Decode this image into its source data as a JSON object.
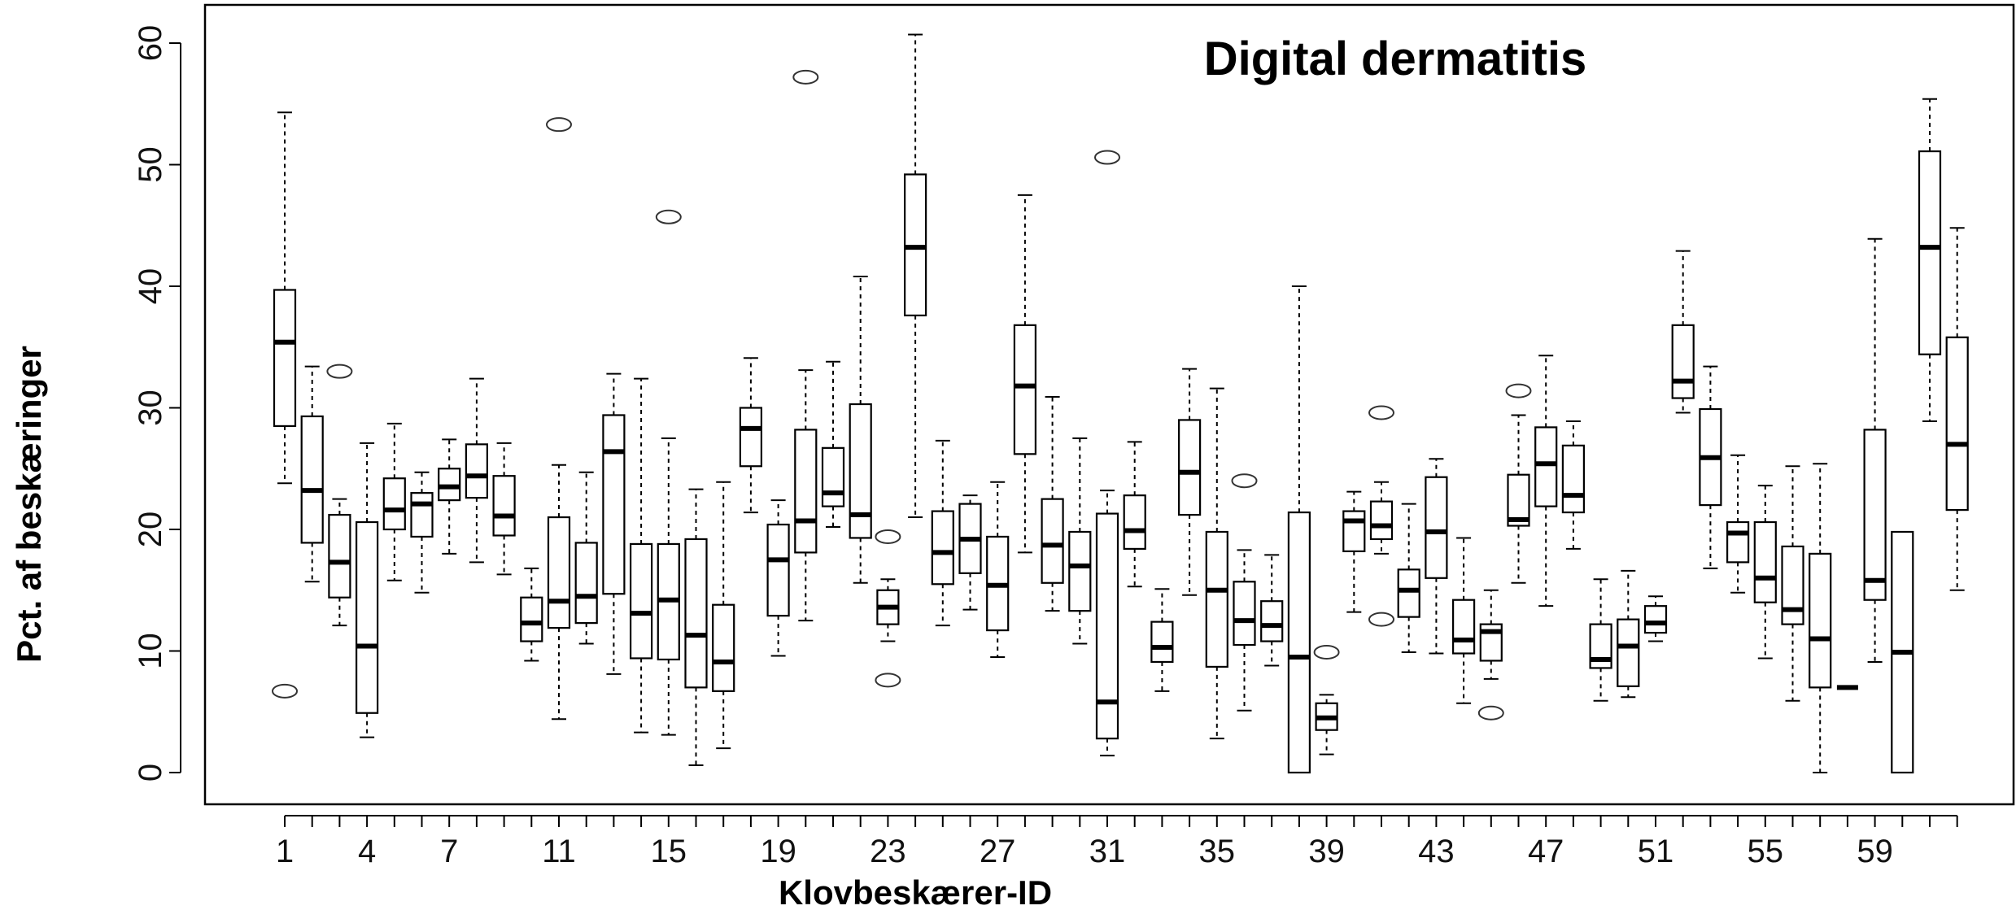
{
  "chart_data": {
    "type": "boxplot",
    "title": "Digital dermatitis",
    "xlabel": "Klovbeskærer-ID",
    "ylabel": "Pct. af beskæringer",
    "ylim": [
      -2.5,
      63
    ],
    "y_ticks": [
      0,
      10,
      20,
      30,
      40,
      50,
      60
    ],
    "x_tick_labels": [
      "1",
      "4",
      "7",
      "11",
      "15",
      "19",
      "23",
      "27",
      "31",
      "35",
      "39",
      "43",
      "47",
      "51",
      "55",
      "59"
    ],
    "x_tick_label_ids": [
      1,
      4,
      7,
      11,
      15,
      19,
      23,
      27,
      31,
      35,
      39,
      43,
      47,
      51,
      55,
      59
    ],
    "grid": false,
    "boxes": [
      {
        "id": 1,
        "whislo": 23.8,
        "q1": 28.5,
        "med": 35.4,
        "q3": 39.7,
        "whishi": 54.3,
        "fliers": [
          6.7
        ]
      },
      {
        "id": 2,
        "whislo": 15.7,
        "q1": 18.9,
        "med": 23.2,
        "q3": 29.3,
        "whishi": 33.4,
        "fliers": []
      },
      {
        "id": 3,
        "whislo": 12.1,
        "q1": 14.4,
        "med": 17.3,
        "q3": 21.2,
        "whishi": 22.5,
        "fliers": [
          33.0
        ]
      },
      {
        "id": 4,
        "whislo": 2.9,
        "q1": 4.9,
        "med": 10.4,
        "q3": 20.6,
        "whishi": 27.1,
        "fliers": []
      },
      {
        "id": 5,
        "whislo": 15.8,
        "q1": 20.0,
        "med": 21.6,
        "q3": 24.2,
        "whishi": 28.7,
        "fliers": []
      },
      {
        "id": 6,
        "whislo": 14.8,
        "q1": 19.4,
        "med": 22.1,
        "q3": 23.0,
        "whishi": 24.7,
        "fliers": []
      },
      {
        "id": 7,
        "whislo": 18.0,
        "q1": 22.4,
        "med": 23.5,
        "q3": 25.0,
        "whishi": 27.4,
        "fliers": []
      },
      {
        "id": 8,
        "whislo": 17.3,
        "q1": 22.6,
        "med": 24.4,
        "q3": 27.0,
        "whishi": 32.4,
        "fliers": []
      },
      {
        "id": 9,
        "whislo": 16.3,
        "q1": 19.5,
        "med": 21.1,
        "q3": 24.4,
        "whishi": 27.1,
        "fliers": []
      },
      {
        "id": 10,
        "whislo": 9.2,
        "q1": 10.8,
        "med": 12.3,
        "q3": 14.4,
        "whishi": 16.8,
        "fliers": []
      },
      {
        "id": 11,
        "whislo": 4.4,
        "q1": 11.9,
        "med": 14.1,
        "q3": 21.0,
        "whishi": 25.3,
        "fliers": [
          53.3
        ]
      },
      {
        "id": 12,
        "whislo": 10.6,
        "q1": 12.3,
        "med": 14.5,
        "q3": 18.9,
        "whishi": 24.7,
        "fliers": []
      },
      {
        "id": 13,
        "whislo": 8.1,
        "q1": 14.7,
        "med": 26.4,
        "q3": 29.4,
        "whishi": 32.8,
        "fliers": []
      },
      {
        "id": 14,
        "whislo": 3.3,
        "q1": 9.4,
        "med": 13.1,
        "q3": 18.8,
        "whishi": 32.4,
        "fliers": []
      },
      {
        "id": 15,
        "whislo": 3.1,
        "q1": 9.3,
        "med": 14.2,
        "q3": 18.8,
        "whishi": 27.5,
        "fliers": [
          45.7
        ]
      },
      {
        "id": 16,
        "whislo": 0.6,
        "q1": 7.0,
        "med": 11.3,
        "q3": 19.2,
        "whishi": 23.3,
        "fliers": []
      },
      {
        "id": 17,
        "whislo": 2.0,
        "q1": 6.7,
        "med": 9.1,
        "q3": 13.8,
        "whishi": 23.9,
        "fliers": []
      },
      {
        "id": 18,
        "whislo": 21.4,
        "q1": 25.2,
        "med": 28.3,
        "q3": 30.0,
        "whishi": 34.1,
        "fliers": []
      },
      {
        "id": 19,
        "whislo": 9.6,
        "q1": 12.9,
        "med": 17.5,
        "q3": 20.4,
        "whishi": 22.4,
        "fliers": []
      },
      {
        "id": 20,
        "whislo": 12.5,
        "q1": 18.1,
        "med": 20.7,
        "q3": 28.2,
        "whishi": 33.1,
        "fliers": [
          57.2
        ]
      },
      {
        "id": 21,
        "whislo": 20.2,
        "q1": 21.9,
        "med": 23.0,
        "q3": 26.7,
        "whishi": 33.8,
        "fliers": []
      },
      {
        "id": 22,
        "whislo": 15.6,
        "q1": 19.3,
        "med": 21.2,
        "q3": 30.3,
        "whishi": 40.8,
        "fliers": []
      },
      {
        "id": 23,
        "whislo": 10.8,
        "q1": 12.2,
        "med": 13.6,
        "q3": 15.0,
        "whishi": 15.9,
        "fliers": [
          19.4,
          7.6
        ]
      },
      {
        "id": 24,
        "whislo": 21.0,
        "q1": 37.6,
        "med": 43.2,
        "q3": 49.2,
        "whishi": 60.7,
        "fliers": []
      },
      {
        "id": 25,
        "whislo": 12.1,
        "q1": 15.5,
        "med": 18.1,
        "q3": 21.5,
        "whishi": 27.3,
        "fliers": []
      },
      {
        "id": 26,
        "whislo": 13.4,
        "q1": 16.4,
        "med": 19.2,
        "q3": 22.1,
        "whishi": 22.8,
        "fliers": []
      },
      {
        "id": 27,
        "whislo": 9.5,
        "q1": 11.7,
        "med": 15.4,
        "q3": 19.4,
        "whishi": 23.9,
        "fliers": []
      },
      {
        "id": 28,
        "whislo": 18.1,
        "q1": 26.2,
        "med": 31.8,
        "q3": 36.8,
        "whishi": 47.5,
        "fliers": []
      },
      {
        "id": 29,
        "whislo": 13.3,
        "q1": 15.6,
        "med": 18.7,
        "q3": 22.5,
        "whishi": 30.9,
        "fliers": []
      },
      {
        "id": 30,
        "whislo": 10.6,
        "q1": 13.3,
        "med": 17.0,
        "q3": 19.8,
        "whishi": 27.5,
        "fliers": []
      },
      {
        "id": 31,
        "whislo": 1.4,
        "q1": 2.8,
        "med": 5.8,
        "q3": 21.3,
        "whishi": 23.2,
        "fliers": [
          50.6
        ]
      },
      {
        "id": 32,
        "whislo": 15.3,
        "q1": 18.4,
        "med": 19.9,
        "q3": 22.8,
        "whishi": 27.2,
        "fliers": []
      },
      {
        "id": 33,
        "whislo": 6.7,
        "q1": 9.1,
        "med": 10.3,
        "q3": 12.4,
        "whishi": 15.1,
        "fliers": []
      },
      {
        "id": 34,
        "whislo": 14.6,
        "q1": 21.2,
        "med": 24.7,
        "q3": 29.0,
        "whishi": 33.2,
        "fliers": []
      },
      {
        "id": 35,
        "whislo": 2.8,
        "q1": 8.7,
        "med": 15.0,
        "q3": 19.8,
        "whishi": 31.6,
        "fliers": []
      },
      {
        "id": 36,
        "whislo": 5.1,
        "q1": 10.5,
        "med": 12.5,
        "q3": 15.7,
        "whishi": 18.3,
        "fliers": [
          24.0
        ]
      },
      {
        "id": 37,
        "whislo": 8.8,
        "q1": 10.8,
        "med": 12.1,
        "q3": 14.1,
        "whishi": 17.9,
        "fliers": []
      },
      {
        "id": 38,
        "whislo": 0.0,
        "q1": 0.0,
        "med": 9.5,
        "q3": 21.4,
        "whishi": 40.0,
        "fliers": []
      },
      {
        "id": 39,
        "whislo": 1.5,
        "q1": 3.5,
        "med": 4.5,
        "q3": 5.7,
        "whishi": 6.4,
        "fliers": [
          9.9
        ]
      },
      {
        "id": 40,
        "whislo": 13.2,
        "q1": 18.2,
        "med": 20.7,
        "q3": 21.5,
        "whishi": 23.1,
        "fliers": []
      },
      {
        "id": 41,
        "whislo": 18.0,
        "q1": 19.2,
        "med": 20.3,
        "q3": 22.3,
        "whishi": 23.9,
        "fliers": [
          29.6,
          12.6
        ]
      },
      {
        "id": 42,
        "whislo": 9.9,
        "q1": 12.8,
        "med": 15.0,
        "q3": 16.7,
        "whishi": 22.1,
        "fliers": []
      },
      {
        "id": 43,
        "whislo": 9.8,
        "q1": 16.0,
        "med": 19.8,
        "q3": 24.3,
        "whishi": 25.8,
        "fliers": []
      },
      {
        "id": 44,
        "whislo": 5.7,
        "q1": 9.8,
        "med": 10.9,
        "q3": 14.2,
        "whishi": 19.3,
        "fliers": []
      },
      {
        "id": 45,
        "whislo": 7.7,
        "q1": 9.2,
        "med": 11.6,
        "q3": 12.2,
        "whishi": 15.0,
        "fliers": [
          4.9
        ]
      },
      {
        "id": 46,
        "whislo": 15.6,
        "q1": 20.3,
        "med": 20.8,
        "q3": 24.5,
        "whishi": 29.4,
        "fliers": [
          31.4
        ]
      },
      {
        "id": 47,
        "whislo": 13.7,
        "q1": 21.9,
        "med": 25.4,
        "q3": 28.4,
        "whishi": 34.3,
        "fliers": []
      },
      {
        "id": 48,
        "whislo": 18.4,
        "q1": 21.4,
        "med": 22.8,
        "q3": 26.9,
        "whishi": 28.9,
        "fliers": []
      },
      {
        "id": 49,
        "whislo": 5.9,
        "q1": 8.6,
        "med": 9.3,
        "q3": 12.2,
        "whishi": 15.9,
        "fliers": []
      },
      {
        "id": 50,
        "whislo": 6.2,
        "q1": 7.1,
        "med": 10.4,
        "q3": 12.6,
        "whishi": 16.6,
        "fliers": []
      },
      {
        "id": 51,
        "whislo": 10.8,
        "q1": 11.5,
        "med": 12.3,
        "q3": 13.7,
        "whishi": 14.5,
        "fliers": []
      },
      {
        "id": 52,
        "whislo": 29.6,
        "q1": 30.8,
        "med": 32.2,
        "q3": 36.8,
        "whishi": 42.9,
        "fliers": []
      },
      {
        "id": 53,
        "whislo": 16.8,
        "q1": 22.0,
        "med": 25.9,
        "q3": 29.9,
        "whishi": 33.4,
        "fliers": []
      },
      {
        "id": 54,
        "whislo": 14.8,
        "q1": 17.3,
        "med": 19.7,
        "q3": 20.6,
        "whishi": 26.1,
        "fliers": []
      },
      {
        "id": 55,
        "whislo": 9.4,
        "q1": 14.0,
        "med": 16.0,
        "q3": 20.6,
        "whishi": 23.6,
        "fliers": []
      },
      {
        "id": 56,
        "whislo": 5.9,
        "q1": 12.2,
        "med": 13.4,
        "q3": 18.6,
        "whishi": 25.2,
        "fliers": []
      },
      {
        "id": 57,
        "whislo": 0.0,
        "q1": 7.0,
        "med": 11.0,
        "q3": 18.0,
        "whishi": 25.4,
        "fliers": []
      },
      {
        "id": 58,
        "whislo": 7.0,
        "q1": 7.0,
        "med": 7.0,
        "q3": 7.0,
        "whishi": 7.0,
        "fliers": []
      },
      {
        "id": 59,
        "whislo": 9.1,
        "q1": 14.2,
        "med": 15.8,
        "q3": 28.2,
        "whishi": 43.9,
        "fliers": []
      },
      {
        "id": 60,
        "whislo": 0.0,
        "q1": 0.0,
        "med": 9.9,
        "q3": 19.8,
        "whishi": 19.8,
        "fliers": []
      },
      {
        "id": 61,
        "whislo": 28.9,
        "q1": 34.4,
        "med": 43.2,
        "q3": 51.1,
        "whishi": 55.4,
        "fliers": []
      },
      {
        "id": 62,
        "whislo": 15.0,
        "q1": 21.6,
        "med": 27.0,
        "q3": 35.8,
        "whishi": 44.8,
        "fliers": []
      }
    ]
  }
}
